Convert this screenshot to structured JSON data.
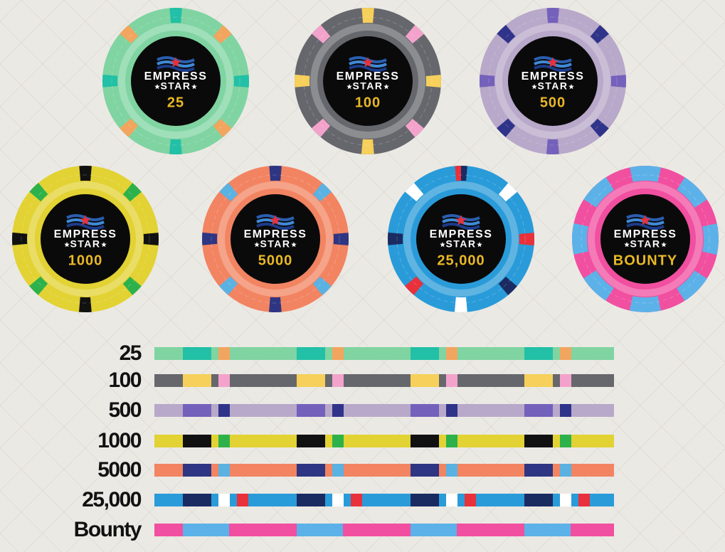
{
  "chips": [
    {
      "brand": "EMPRESS",
      "subbrand": "STAR",
      "denomination": "25",
      "color": "#7fd4a2",
      "accents": [
        "#22c0a6",
        "#f2a55e"
      ]
    },
    {
      "brand": "EMPRESS",
      "subbrand": "STAR",
      "denomination": "100",
      "color": "#66676d",
      "accents": [
        "#f6d05a",
        "#f3a3cb"
      ]
    },
    {
      "brand": "EMPRESS",
      "subbrand": "STAR",
      "denomination": "500",
      "color": "#b8a8c9",
      "accents": [
        "#7461bb",
        "#2f3389"
      ]
    },
    {
      "brand": "EMPRESS",
      "subbrand": "STAR",
      "denomination": "1000",
      "color": "#e2d233",
      "accents": [
        "#111111",
        "#2db24b"
      ]
    },
    {
      "brand": "EMPRESS",
      "subbrand": "STAR",
      "denomination": "5000",
      "color": "#f28462",
      "accents": [
        "#2e3582",
        "#5ab2e2"
      ]
    },
    {
      "brand": "EMPRESS",
      "subbrand": "STAR",
      "denomination": "25,000",
      "color": "#2a9bd9",
      "accents": [
        "#1a2b62",
        "#ffffff",
        "#e8313b"
      ]
    },
    {
      "brand": "EMPRESS",
      "subbrand": "STAR",
      "denomination": "BOUNTY",
      "color": "#f14fa0",
      "accents": [
        "#5cb2e8"
      ]
    }
  ],
  "edges": [
    {
      "label": "25"
    },
    {
      "label": "100"
    },
    {
      "label": "500"
    },
    {
      "label": "1000"
    },
    {
      "label": "5000"
    },
    {
      "label": "25,000"
    },
    {
      "label": "Bounty"
    }
  ]
}
